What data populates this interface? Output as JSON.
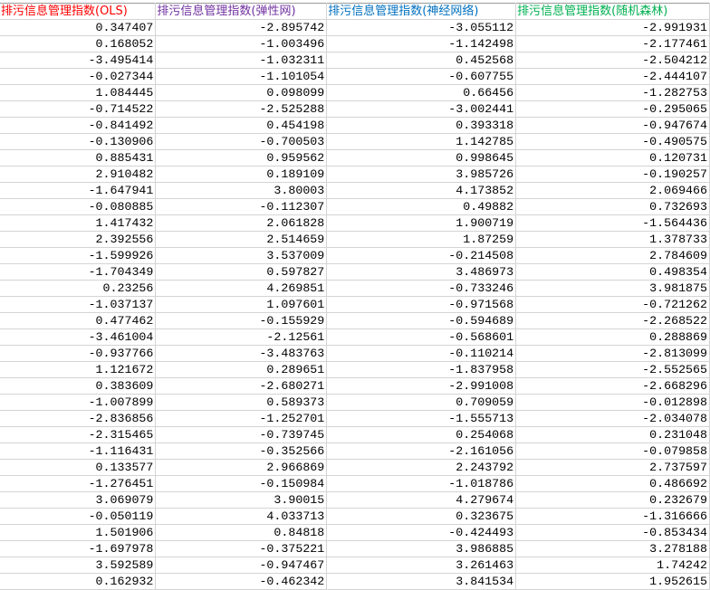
{
  "sheet": {
    "headers": [
      {
        "label": "排污信息管理指数(OLS)",
        "color": "#ff0000"
      },
      {
        "label": "排污信息管理指数(弹性网)",
        "color": "#7030a0"
      },
      {
        "label": "排污信息管理指数(神经网络)",
        "color": "#0070c0"
      },
      {
        "label": "排污信息管理指数(随机森林)",
        "color": "#00b050"
      }
    ],
    "rows": [
      [
        "0.347407",
        "-2.895742",
        "-3.055112",
        "-2.991931"
      ],
      [
        "0.168052",
        "-1.003496",
        "-1.142498",
        "-2.177461"
      ],
      [
        "-3.495414",
        "-1.032311",
        "0.452568",
        "-2.504212"
      ],
      [
        "-0.027344",
        "-1.101054",
        "-0.607755",
        "-2.444107"
      ],
      [
        "1.084445",
        "0.098099",
        "0.66456",
        "-1.282753"
      ],
      [
        "-0.714522",
        "-2.525288",
        "-3.002441",
        "-0.295065"
      ],
      [
        "-0.841492",
        "0.454198",
        "0.393318",
        "-0.947674"
      ],
      [
        "-0.130906",
        "-0.700503",
        "1.142785",
        "-0.490575"
      ],
      [
        "0.885431",
        "0.959562",
        "0.998645",
        "0.120731"
      ],
      [
        "2.910482",
        "0.189109",
        "3.985726",
        "-0.190257"
      ],
      [
        "-1.647941",
        "3.80003",
        "4.173852",
        "2.069466"
      ],
      [
        "-0.080885",
        "-0.112307",
        "0.49882",
        "0.732693"
      ],
      [
        "1.417432",
        "2.061828",
        "1.900719",
        "-1.564436"
      ],
      [
        "2.392556",
        "2.514659",
        "1.87259",
        "1.378733"
      ],
      [
        "-1.599926",
        "3.537009",
        "-0.214508",
        "2.784609"
      ],
      [
        "-1.704349",
        "0.597827",
        "3.486973",
        "0.498354"
      ],
      [
        "0.23256",
        "4.269851",
        "-0.733246",
        "3.981875"
      ],
      [
        "-1.037137",
        "1.097601",
        "-0.971568",
        "-0.721262"
      ],
      [
        "0.477462",
        "-0.155929",
        "-0.594689",
        "-2.268522"
      ],
      [
        "-3.461004",
        "-2.12561",
        "-0.568601",
        "0.288869"
      ],
      [
        "-0.937766",
        "-3.483763",
        "-0.110214",
        "-2.813099"
      ],
      [
        "1.121672",
        "0.289651",
        "-1.837958",
        "-2.552565"
      ],
      [
        "0.383609",
        "-2.680271",
        "-2.991008",
        "-2.668296"
      ],
      [
        "-1.007899",
        "0.589373",
        "0.709059",
        "-0.012898"
      ],
      [
        "-2.836856",
        "-1.252701",
        "-1.555713",
        "-2.034078"
      ],
      [
        "-2.315465",
        "-0.739745",
        "0.254068",
        "0.231048"
      ],
      [
        "-1.116431",
        "-0.352566",
        "-2.161056",
        "-0.079858"
      ],
      [
        "0.133577",
        "2.966869",
        "2.243792",
        "2.737597"
      ],
      [
        "-1.276451",
        "-0.150984",
        "-1.018786",
        "0.486692"
      ],
      [
        "3.069079",
        "3.90015",
        "4.279674",
        "0.232679"
      ],
      [
        "-0.050119",
        "4.033713",
        "0.323675",
        "-1.316666"
      ],
      [
        "1.501906",
        "0.84818",
        "-0.424493",
        "-0.853434"
      ],
      [
        "-1.697978",
        "-0.375221",
        "3.986885",
        "3.278188"
      ],
      [
        "3.592589",
        "-0.947467",
        "3.261463",
        "1.74242"
      ],
      [
        "0.162932",
        "-0.462342",
        "3.841534",
        "1.952615"
      ]
    ]
  }
}
